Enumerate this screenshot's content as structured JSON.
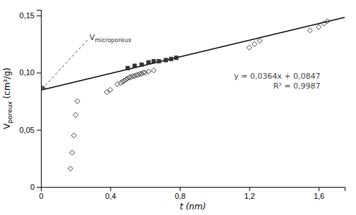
{
  "chart_data": {
    "type": "scatter",
    "xlabel": "t (nm)",
    "ylabel": "Vporeux (cm³/g)",
    "xlim": [
      0,
      1.75
    ],
    "ylim": [
      0,
      0.155
    ],
    "xticks": [
      0,
      {
        "value": 0.4,
        "label": "0,4"
      },
      {
        "value": 0.8,
        "label": "0,8"
      },
      {
        "value": 1.2,
        "label": "1,2"
      },
      {
        "value": 1.6,
        "label": "1,6"
      }
    ],
    "yticks": [
      0,
      {
        "value": 0.05,
        "label": "0,05"
      },
      {
        "value": 0.1,
        "label": "0,10"
      },
      {
        "value": 0.15,
        "label": "0,15"
      }
    ],
    "grid": false,
    "series": [
      {
        "type": "scatter",
        "marker": "open_diamond",
        "color": "#333333",
        "x": [
          0.17,
          0.18,
          0.19,
          0.2,
          0.21,
          0.38,
          0.4,
          0.44,
          0.46,
          0.47,
          0.48,
          0.49,
          0.5,
          0.51,
          0.52,
          0.53,
          0.54,
          0.55,
          0.56,
          0.57,
          0.58,
          0.59,
          0.6,
          0.62,
          0.65,
          1.2,
          1.23,
          1.26,
          1.55,
          1.6,
          1.63,
          1.65
        ],
        "values": [
          0.016,
          0.03,
          0.045,
          0.063,
          0.075,
          0.083,
          0.085,
          0.09,
          0.091,
          0.092,
          0.093,
          0.094,
          0.095,
          0.096,
          0.096,
          0.097,
          0.097,
          0.098,
          0.098,
          0.099,
          0.099,
          0.1,
          0.1,
          0.101,
          0.102,
          0.122,
          0.125,
          0.128,
          0.137,
          0.14,
          0.143,
          0.145
        ]
      },
      {
        "type": "scatter",
        "marker": "square",
        "color": "#333333",
        "x": [
          0.5,
          0.54,
          0.58,
          0.62,
          0.65,
          0.68,
          0.72,
          0.75,
          0.78
        ],
        "values": [
          0.104,
          0.106,
          0.107,
          0.109,
          0.11,
          0.11,
          0.111,
          0.112,
          0.113
        ]
      },
      {
        "type": "line",
        "line_style": "solid",
        "color": "#000000",
        "x": [
          0,
          1.75
        ],
        "values": [
          0.0847,
          0.1484
        ]
      }
    ],
    "annotations": [
      {
        "text": "y = 0,0364x + 0,0847"
      },
      {
        "text": "R² = 0,9987"
      },
      {
        "text": "Vmicroporeux",
        "x": 0,
        "y": 0.0847
      }
    ]
  }
}
